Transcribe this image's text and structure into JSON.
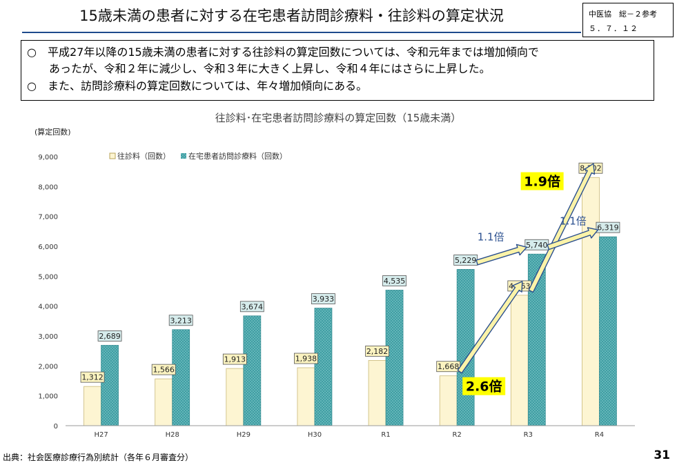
{
  "header": {
    "title": "15歳未満の患者に対する在宅患者訪問診療料・往診料の算定状況",
    "ref_line1": "中医協　総－２参考",
    "ref_line2": "５．７．１２"
  },
  "summary": {
    "bullet1_line1": "○　平成27年以降の15歳未満の患者に対する往診料の算定回数については、令和元年までは増加傾向で",
    "bullet1_line2": "あったが、令和２年に減少し、令和３年に大きく上昇し、令和４年にはさらに上昇した。",
    "bullet2": "○　また、訪問診療料の算定回数については、年々増加傾向にある。"
  },
  "chart_data": {
    "type": "bar",
    "title": "往診料･在宅患者訪問診療料の算定回数（15歳未満）",
    "ylabel": "(算定回数)",
    "categories": [
      "H27",
      "H28",
      "H29",
      "H30",
      "R1",
      "R2",
      "R3",
      "R4"
    ],
    "ylim": [
      0,
      9000
    ],
    "yticks": [
      "0",
      "1,000",
      "2,000",
      "3,000",
      "4,000",
      "5,000",
      "6,000",
      "7,000",
      "8,000",
      "9,000"
    ],
    "grid": false,
    "legend_position": "top-left",
    "series": [
      {
        "name": "往診料（回数）",
        "color": "#fdf5d2",
        "labels": [
          "1,312",
          "1,566",
          "1,913",
          "1,938",
          "2,182",
          "1,668",
          "4,363",
          "8,302"
        ],
        "values": [
          1312,
          1566,
          1913,
          1938,
          2182,
          1668,
          4363,
          8302
        ]
      },
      {
        "name": "在宅患者訪問診療料（回数）",
        "color": "#4fa9ad",
        "labels": [
          "2,689",
          "3,213",
          "3,674",
          "3,933",
          "4,535",
          "5,229",
          "5,740",
          "6,319"
        ],
        "values": [
          2689,
          3213,
          3674,
          3933,
          4535,
          5229,
          5740,
          6319
        ]
      }
    ],
    "annotations": [
      {
        "text": "2.6倍",
        "series": 0,
        "from": "R2",
        "to": "R3"
      },
      {
        "text": "1.9倍",
        "series": 0,
        "from": "R3",
        "to": "R4"
      },
      {
        "text": "1.1倍",
        "series": 1,
        "from": "R2",
        "to": "R3"
      },
      {
        "text": "1.1倍",
        "series": 1,
        "from": "R3",
        "to": "R4"
      }
    ]
  },
  "footer": {
    "source": "出典：社会医療診療行為別統計（各年６月審査分）",
    "page_number": "31"
  },
  "colors": {
    "accent": "#1e4b8c",
    "highlight": "#ffff00",
    "ratio_arrow_fill": "#fbf3a8",
    "label_box_fill_1": "#fbf3c0",
    "label_box_fill_2": "#d6ecec"
  }
}
